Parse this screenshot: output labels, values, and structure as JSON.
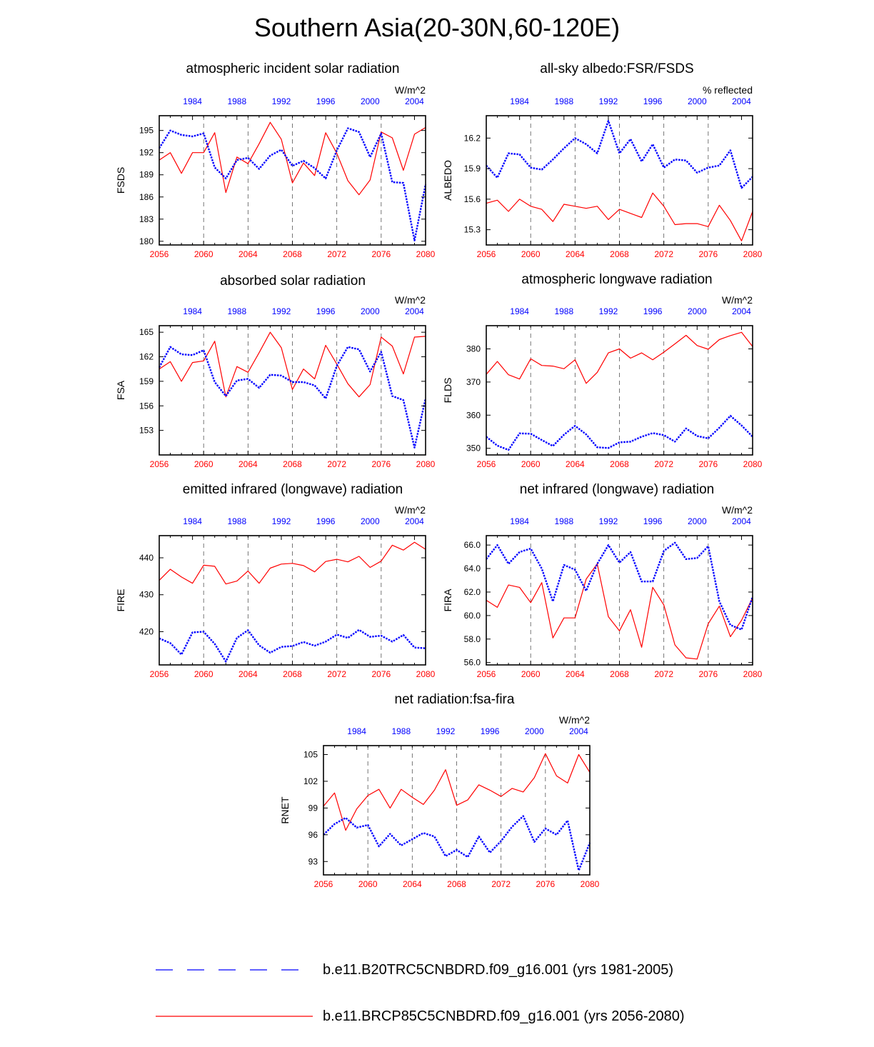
{
  "title": "Southern Asia(20-30N,60-120E)",
  "legend": [
    {
      "label": "b.e11.B20TRC5CNBDRD.f09_g16.001 (yrs 1981-2005)",
      "color": "#0000ff",
      "style": "dashed"
    },
    {
      "label": "b.e11.BRCP85C5CNBDRD.f09_g16.001 (yrs 2056-2080)",
      "color": "#ff0000",
      "style": "solid"
    }
  ],
  "colors": {
    "historical": "#0000ff",
    "future": "#ff0000"
  },
  "chart_data": [
    {
      "id": "fsds",
      "type": "line",
      "title": "atmospheric incident solar radiation",
      "ylabel": "FSDS",
      "units": "W/m^2",
      "ylim": [
        179.5,
        197.0
      ],
      "yticks": [
        180,
        183,
        186,
        189,
        192,
        195
      ],
      "ytick_labels": [
        "180",
        "183",
        "186",
        "189",
        "192",
        "195"
      ],
      "x_bottom": [
        2056,
        2080
      ],
      "xticks_bottom": [
        2056,
        2060,
        2064,
        2068,
        2072,
        2076,
        2080
      ],
      "x_top": [
        1981,
        2005
      ],
      "xticks_top": [
        1984,
        1988,
        1992,
        1996,
        2000,
        2004
      ],
      "series": [
        {
          "name": "b.e11.B20TRC5CNBDRD.f09_g16.001 (yrs 1981-2005)",
          "values": [
            192.6,
            195.0,
            194.4,
            194.2,
            194.6,
            190.0,
            188.5,
            191.0,
            191.3,
            189.8,
            191.6,
            192.4,
            190.2,
            190.9,
            189.9,
            188.5,
            192.3,
            195.3,
            194.8,
            191.4,
            194.6,
            188.0,
            187.9,
            180.1,
            187.7
          ]
        },
        {
          "name": "b.e11.BRCP85C5CNBDRD.f09_g16.001 (yrs 2056-2080)",
          "values": [
            191.0,
            192.0,
            189.2,
            192.0,
            192.0,
            194.7,
            186.6,
            191.4,
            190.5,
            193.2,
            196.1,
            193.8,
            187.9,
            190.6,
            188.9,
            194.7,
            191.9,
            188.2,
            186.3,
            188.3,
            194.8,
            194.0,
            189.6,
            194.5,
            195.4
          ]
        }
      ]
    },
    {
      "id": "albedo",
      "type": "line",
      "title": "all-sky albedo:FSR/FSDS",
      "ylabel": "ALBEDO",
      "units": "% reflected",
      "ylim": [
        15.15,
        16.42
      ],
      "yticks": [
        15.3,
        15.6,
        15.9,
        16.2
      ],
      "ytick_labels": [
        "15.3",
        "15.6",
        "15.9",
        "16.2"
      ],
      "x_bottom": [
        2056,
        2080
      ],
      "xticks_bottom": [
        2056,
        2060,
        2064,
        2068,
        2072,
        2076,
        2080
      ],
      "x_top": [
        1981,
        2005
      ],
      "xticks_top": [
        1984,
        1988,
        1992,
        1996,
        2000,
        2004
      ],
      "series": [
        {
          "name": "b.e11.B20TRC5CNBDRD.f09_g16.001 (yrs 1981-2005)",
          "values": [
            15.93,
            15.81,
            16.05,
            16.04,
            15.91,
            15.89,
            15.99,
            16.1,
            16.2,
            16.14,
            16.05,
            16.37,
            16.05,
            16.19,
            15.97,
            16.14,
            15.91,
            15.99,
            15.98,
            15.86,
            15.91,
            15.93,
            16.08,
            15.71,
            15.82
          ]
        },
        {
          "name": "b.e11.BRCP85C5CNBDRD.f09_g16.001 (yrs 2056-2080)",
          "values": [
            15.56,
            15.59,
            15.48,
            15.6,
            15.53,
            15.5,
            15.38,
            15.55,
            15.53,
            15.51,
            15.53,
            15.4,
            15.5,
            15.46,
            15.42,
            15.66,
            15.53,
            15.35,
            15.36,
            15.36,
            15.33,
            15.54,
            15.39,
            15.19,
            15.48
          ]
        }
      ]
    },
    {
      "id": "fsa",
      "type": "line",
      "title": "absorbed solar radiation",
      "ylabel": "FSA",
      "units": "W/m^2",
      "ylim": [
        150.0,
        165.8
      ],
      "yticks": [
        153,
        156,
        159,
        162,
        165
      ],
      "ytick_labels": [
        "153",
        "156",
        "159",
        "162",
        "165"
      ],
      "x_bottom": [
        2056,
        2080
      ],
      "xticks_bottom": [
        2056,
        2060,
        2064,
        2068,
        2072,
        2076,
        2080
      ],
      "x_top": [
        1981,
        2005
      ],
      "xticks_top": [
        1984,
        1988,
        1992,
        1996,
        2000,
        2004
      ],
      "series": [
        {
          "name": "b.e11.B20TRC5CNBDRD.f09_g16.001 (yrs 1981-2005)",
          "values": [
            160.7,
            163.2,
            162.3,
            162.2,
            162.8,
            158.9,
            157.2,
            159.1,
            159.3,
            158.2,
            159.8,
            159.7,
            158.9,
            158.9,
            158.5,
            156.9,
            160.9,
            163.2,
            162.9,
            160.2,
            162.6,
            157.2,
            156.7,
            150.9,
            156.9
          ]
        },
        {
          "name": "b.e11.BRCP85C5CNBDRD.f09_g16.001 (yrs 2056-2080)",
          "values": [
            160.5,
            161.4,
            159.0,
            161.3,
            161.5,
            163.9,
            157.1,
            160.8,
            160.1,
            162.5,
            165.0,
            163.1,
            158.0,
            160.5,
            159.3,
            163.4,
            161.1,
            158.7,
            157.1,
            158.6,
            164.4,
            163.3,
            159.9,
            164.4,
            164.5
          ]
        }
      ]
    },
    {
      "id": "flds",
      "type": "line",
      "title": "atmospheric longwave radiation",
      "ylabel": "FLDS",
      "units": "W/m^2",
      "ylim": [
        348.0,
        387.0
      ],
      "yticks": [
        350,
        360,
        370,
        380
      ],
      "ytick_labels": [
        "350",
        "360",
        "370",
        "380"
      ],
      "x_bottom": [
        2056,
        2080
      ],
      "xticks_bottom": [
        2056,
        2060,
        2064,
        2068,
        2072,
        2076,
        2080
      ],
      "x_top": [
        1981,
        2005
      ],
      "xticks_top": [
        1984,
        1988,
        1992,
        1996,
        2000,
        2004
      ],
      "series": [
        {
          "name": "b.e11.B20TRC5CNBDRD.f09_g16.001 (yrs 1981-2005)",
          "values": [
            353.5,
            350.8,
            349.5,
            354.5,
            354.4,
            352.5,
            350.7,
            354.1,
            356.8,
            354.2,
            350.3,
            350.1,
            351.8,
            352.0,
            353.5,
            354.6,
            354.0,
            352.0,
            356.0,
            353.7,
            353.0,
            356.2,
            359.8,
            356.9,
            353.5
          ]
        },
        {
          "name": "b.e11.BRCP85C5CNBDRD.f09_g16.001 (yrs 2056-2080)",
          "values": [
            372.3,
            376.2,
            372.2,
            370.9,
            377.0,
            375.0,
            374.8,
            374.0,
            376.7,
            369.6,
            372.9,
            378.8,
            380.0,
            377.2,
            378.8,
            376.7,
            379.0,
            381.5,
            384.1,
            381.0,
            379.9,
            382.8,
            384.0,
            385.0,
            380.7
          ]
        }
      ]
    },
    {
      "id": "fire",
      "type": "line",
      "title": "emitted infrared (longwave) radiation",
      "ylabel": "FIRE",
      "units": "W/m^2",
      "ylim": [
        411.0,
        446.0
      ],
      "yticks": [
        420,
        430,
        440
      ],
      "ytick_labels": [
        "420",
        "430",
        "440"
      ],
      "x_bottom": [
        2056,
        2080
      ],
      "xticks_bottom": [
        2056,
        2060,
        2064,
        2068,
        2072,
        2076,
        2080
      ],
      "x_top": [
        1981,
        2005
      ],
      "xticks_top": [
        1984,
        1988,
        1992,
        1996,
        2000,
        2004
      ],
      "series": [
        {
          "name": "b.e11.B20TRC5CNBDRD.f09_g16.001 (yrs 1981-2005)",
          "values": [
            418.2,
            416.9,
            413.8,
            419.8,
            420.0,
            416.7,
            411.9,
            418.3,
            420.4,
            416.3,
            414.3,
            415.9,
            416.1,
            417.2,
            416.2,
            417.3,
            419.2,
            418.3,
            420.5,
            418.6,
            418.9,
            417.3,
            419.1,
            415.7,
            415.5
          ]
        },
        {
          "name": "b.e11.BRCP85C5CNBDRD.f09_g16.001 (yrs 2056-2080)",
          "values": [
            433.9,
            436.9,
            434.8,
            433.1,
            438.0,
            437.7,
            432.9,
            433.7,
            436.4,
            433.1,
            437.2,
            438.3,
            438.5,
            437.9,
            436.2,
            439.0,
            439.6,
            438.9,
            440.4,
            437.4,
            439.1,
            443.4,
            442.1,
            444.2,
            442.3
          ]
        }
      ]
    },
    {
      "id": "fira",
      "type": "line",
      "title": "net infrared (longwave) radiation",
      "ylabel": "FIRA",
      "units": "W/m^2",
      "ylim": [
        55.8,
        66.8
      ],
      "yticks": [
        56.0,
        58.0,
        60.0,
        62.0,
        64.0,
        66.0
      ],
      "ytick_labels": [
        "56.0",
        "58.0",
        "60.0",
        "62.0",
        "64.0",
        "66.0"
      ],
      "x_bottom": [
        2056,
        2080
      ],
      "xticks_bottom": [
        2056,
        2060,
        2064,
        2068,
        2072,
        2076,
        2080
      ],
      "x_top": [
        1981,
        2005
      ],
      "xticks_top": [
        1984,
        1988,
        1992,
        1996,
        2000,
        2004
      ],
      "series": [
        {
          "name": "b.e11.B20TRC5CNBDRD.f09_g16.001 (yrs 1981-2005)",
          "values": [
            64.8,
            66.0,
            64.4,
            65.4,
            65.7,
            64.0,
            61.2,
            64.3,
            63.9,
            62.1,
            64.4,
            66.0,
            64.5,
            65.4,
            62.9,
            62.9,
            65.5,
            66.2,
            64.8,
            64.9,
            65.9,
            61.2,
            59.2,
            58.8,
            61.6
          ]
        },
        {
          "name": "b.e11.BRCP85C5CNBDRD.f09_g16.001 (yrs 2056-2080)",
          "values": [
            61.3,
            60.7,
            62.6,
            62.4,
            61.1,
            62.8,
            58.1,
            59.8,
            59.8,
            63.1,
            64.4,
            59.9,
            58.7,
            60.5,
            57.3,
            62.4,
            60.9,
            57.5,
            56.4,
            56.3,
            59.3,
            60.8,
            58.2,
            59.6,
            61.5
          ]
        }
      ]
    },
    {
      "id": "rnet",
      "type": "line",
      "title": "net radiation:fsa-fira",
      "ylabel": "RNET",
      "units": "W/m^2",
      "ylim": [
        91.5,
        106.0
      ],
      "yticks": [
        93,
        96,
        99,
        102,
        105
      ],
      "ytick_labels": [
        "93",
        "96",
        "99",
        "102",
        "105"
      ],
      "x_bottom": [
        2056,
        2080
      ],
      "xticks_bottom": [
        2056,
        2060,
        2064,
        2068,
        2072,
        2076,
        2080
      ],
      "x_top": [
        1981,
        2005
      ],
      "xticks_top": [
        1984,
        1988,
        1992,
        1996,
        2000,
        2004
      ],
      "series": [
        {
          "name": "b.e11.B20TRC5CNBDRD.f09_g16.001 (yrs 1981-2005)",
          "values": [
            96.0,
            97.2,
            97.9,
            96.8,
            97.1,
            94.7,
            96.1,
            94.8,
            95.5,
            96.2,
            95.8,
            93.6,
            94.3,
            93.5,
            95.8,
            94.0,
            95.3,
            96.9,
            98.1,
            95.2,
            96.7,
            96.0,
            97.6,
            92.0,
            95.1
          ]
        },
        {
          "name": "b.e11.BRCP85C5CNBDRD.f09_g16.001 (yrs 2056-2080)",
          "values": [
            99.2,
            100.7,
            96.5,
            98.9,
            100.4,
            101.1,
            99.0,
            101.1,
            100.2,
            99.4,
            101.0,
            103.3,
            99.3,
            99.9,
            101.6,
            101.0,
            100.3,
            101.2,
            100.8,
            102.4,
            105.1,
            102.6,
            101.8,
            105.0,
            103.0
          ]
        }
      ]
    }
  ]
}
